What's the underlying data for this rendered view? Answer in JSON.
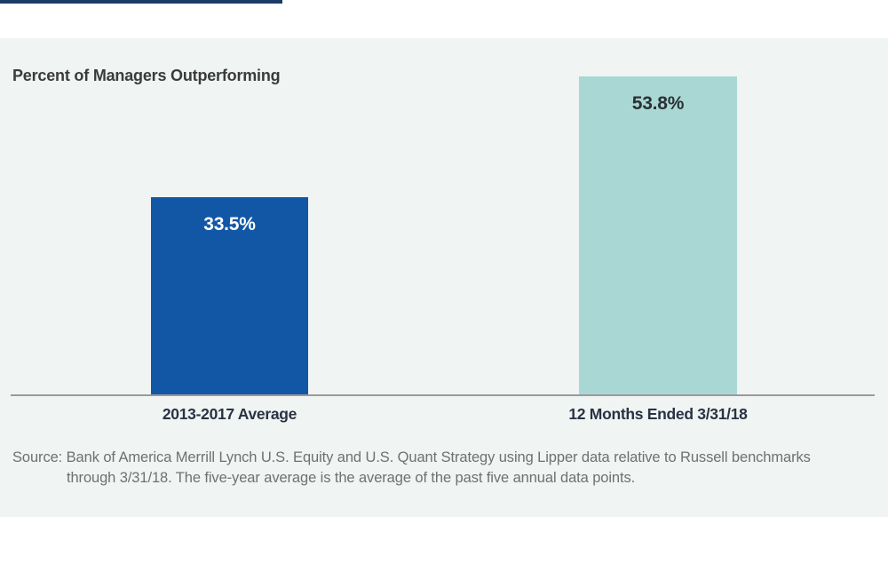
{
  "page": {
    "background": "#ffffff",
    "panel_background": "#f0f4f3",
    "top_rule_color": "#1b3a67"
  },
  "chart_data": {
    "type": "bar",
    "title": "Percent of Managers Outperforming",
    "categories": [
      "2013-2017 Average",
      "12 Months Ended 3/31/18"
    ],
    "values": [
      33.5,
      53.8
    ],
    "value_labels": [
      "33.5%",
      "53.8%"
    ],
    "bar_colors": [
      "#1257a5",
      "#a9d8d4"
    ],
    "value_label_colors": [
      "#ffffff",
      "#2b3036"
    ],
    "xlabel": "",
    "ylabel": "",
    "ylim": [
      0,
      60
    ],
    "baseline_value": 0,
    "axis_line_color": "#9b9b9b",
    "grid": false,
    "legend_position": "none"
  },
  "source": {
    "line1": "Source: Bank of America Merrill Lynch U.S. Equity and U.S. Quant Strategy using Lipper data relative to Russell benchmarks",
    "line2": "through 3/31/18. The five-year average is the average of the past five annual data points."
  }
}
